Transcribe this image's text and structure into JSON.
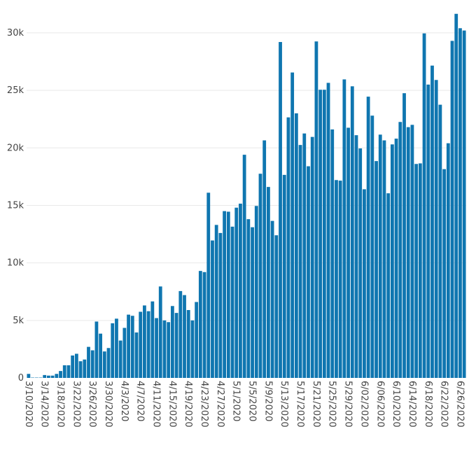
{
  "chart_data": {
    "type": "bar",
    "title": "",
    "xlabel": "",
    "ylabel": "",
    "bar_color": "#0f76b0",
    "grid": true,
    "ylim": [
      0,
      32000
    ],
    "y_ticks": [
      {
        "value": 0,
        "label": "0"
      },
      {
        "value": 5000,
        "label": "5k"
      },
      {
        "value": 10000,
        "label": "10k"
      },
      {
        "value": 15000,
        "label": "15k"
      },
      {
        "value": 20000,
        "label": "20k"
      },
      {
        "value": 25000,
        "label": "25k"
      },
      {
        "value": 30000,
        "label": "30k"
      }
    ],
    "x_tick_labels": [
      "3/10/2020",
      "3/14/2020",
      "3/18/2020",
      "3/22/2020",
      "3/26/2020",
      "3/30/2020",
      "4/3/2020",
      "4/7/2020",
      "4/11/2020",
      "4/15/2020",
      "4/19/2020",
      "4/23/2020",
      "4/27/2020",
      "5/1/2020",
      "5/5/2020",
      "5/9/2020",
      "5/13/2020",
      "5/17/2020",
      "5/21/2020",
      "5/25/2020",
      "5/29/2020",
      "6/02/2020",
      "6/06/2020",
      "6/10/2020",
      "6/14/2020",
      "6/18/2020",
      "6/22/2020",
      "6/26/2020"
    ],
    "start_date": "2020-03-10",
    "values": [
      350,
      30,
      30,
      30,
      250,
      200,
      200,
      350,
      600,
      1100,
      1100,
      1950,
      2100,
      1450,
      1600,
      2700,
      2400,
      4900,
      3850,
      2300,
      2600,
      4750,
      5150,
      3250,
      4350,
      5500,
      5400,
      3950,
      5750,
      6300,
      5800,
      6650,
      5200,
      7950,
      5000,
      4850,
      6250,
      5650,
      7550,
      7200,
      5900,
      5000,
      6600,
      9300,
      9200,
      16100,
      11950,
      13300,
      12600,
      14500,
      14450,
      13150,
      14800,
      15150,
      19400,
      13800,
      13100,
      14950,
      17750,
      20650,
      16600,
      13650,
      12400,
      29200,
      17650,
      22650,
      26550,
      23000,
      20250,
      21250,
      18400,
      20950,
      29250,
      25050,
      25050,
      25650,
      21600,
      17200,
      17150,
      25950,
      21750,
      25350,
      21100,
      19950,
      16400,
      24450,
      22800,
      18850,
      21150,
      20650,
      16050,
      20300,
      20800,
      22250,
      24750,
      21800,
      22000,
      18600,
      18650,
      29950,
      25500,
      27150,
      25900,
      23750,
      18150,
      20400,
      29300,
      31650,
      30400,
      30200
    ]
  }
}
